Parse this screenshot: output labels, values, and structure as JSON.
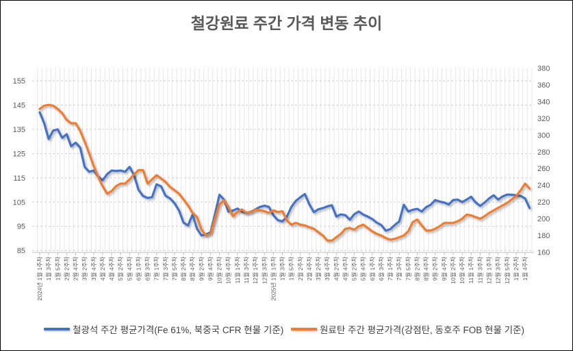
{
  "window": {
    "background": "#ffffff",
    "border_color": "#000000"
  },
  "chart": {
    "title": "철강원료 주간 가격 변동 추이",
    "title_color": "#595959"
  },
  "legend": {
    "items": [
      {
        "label": "철광석 주간 평균가격(Fe 61%, 북중국 CFR 현물 기준)",
        "color": "#4472C4"
      },
      {
        "label": "원료탄 주간 평균가격(강점탄, 동호주 FOB 현물 기준)",
        "color": "#ED7D31"
      }
    ]
  },
  "chart_data": {
    "type": "line",
    "title": "철강원료 주간 가격 변동 추이",
    "x_ticks_every": 2,
    "n_points": 110,
    "x_tick_labels": [
      "2024년 1월 1주차",
      "1월 3주차",
      "1월 5주차",
      "2월 2주차",
      "2월 4주차",
      "3월 2주차",
      "3월 4주차",
      "4월 2주차",
      "4월 4주차",
      "5월 2주차",
      "5월 4주차",
      "6월 1주차",
      "6월 3주차",
      "7월 1주차",
      "7월 3주차",
      "7월 5주차",
      "8월 2주차",
      "8월 4주차",
      "9월 2주차",
      "9월 4주차",
      "10월 2주차",
      "10월 4주차",
      "11월 1주차",
      "11월 3주차",
      "12월 1주차",
      "12월 3주차",
      "2025년 1월 1주차",
      "1월 3주차",
      "1월 5주차",
      "2월 2주차",
      "2월 4주차",
      "3월 2주차",
      "3월 4주차",
      "4월 2주차",
      "4월 4주차",
      "5월 2주차",
      "5월 4주차",
      "6월 1주차",
      "6월 3주차",
      "7월 1주차",
      "7월 3주차",
      "7월 5주차",
      "8월 2주차",
      "8월 4주차",
      "9월 2주차",
      "9월 4주차",
      "10월 2주차",
      "10월 4주차",
      "11월 1주차",
      "11월 3주차",
      "12월 1주차",
      "12월 3주차",
      "12월 5주차",
      "1월 2주차",
      "1월 4주차"
    ],
    "left_axis": {
      "min": 85,
      "max": 155,
      "step": 10,
      "ticks": [
        85,
        95,
        105,
        115,
        125,
        135,
        145,
        155
      ],
      "grid": "dashed"
    },
    "right_axis": {
      "min": 160,
      "max": 380,
      "step": 20,
      "ticks": [
        160,
        180,
        200,
        220,
        240,
        260,
        280,
        300,
        320,
        340,
        360,
        380
      ]
    },
    "legend_position": "bottom",
    "series": [
      {
        "name": "철광석 주간 평균가격(Fe 61%, 북중국 CFR 현물 기준)",
        "axis": "left",
        "color": "#4472C4",
        "values": [
          142,
          137.5,
          131,
          134.5,
          135,
          131.5,
          133,
          128,
          129.5,
          127.5,
          119.5,
          117.5,
          118,
          115.5,
          114,
          116.5,
          118,
          117.8,
          118,
          117.5,
          119.5,
          116,
          110,
          107.5,
          106.7,
          107,
          112.3,
          111.5,
          107.6,
          106.5,
          104.5,
          101.5,
          96.5,
          95.3,
          99.8,
          94,
          91.2,
          91.6,
          92.5,
          100,
          108,
          106,
          101,
          101.5,
          102.3,
          101,
          100.5,
          101,
          102,
          103,
          103.5,
          103,
          99.5,
          97.5,
          97,
          99,
          103,
          105.5,
          107,
          108.3,
          104,
          100.8,
          102,
          102.5,
          103.2,
          103.7,
          99,
          99.9,
          99.6,
          97.7,
          100,
          101.1,
          99.8,
          99,
          98,
          96.5,
          95.5,
          93.2,
          93.8,
          95.5,
          97,
          103.9,
          101.1,
          101.8,
          102.2,
          101.1,
          102.9,
          103.9,
          105.8,
          105.2,
          104.8,
          104,
          105.8,
          106,
          105,
          106,
          107.2,
          104.8,
          103.4,
          104.8,
          106.5,
          107.8,
          106,
          107.3,
          108.1,
          108,
          107.8,
          107.5,
          106.5,
          102.5
        ]
      },
      {
        "name": "원료탄 주간 평균가격(강점탄, 동호주 FOB 현물 기준)",
        "axis": "right",
        "color": "#ED7D31",
        "values": [
          331,
          335,
          336,
          335,
          331,
          326,
          318,
          314,
          314,
          305,
          292,
          278,
          263,
          250,
          239,
          230,
          233,
          239,
          242,
          242,
          247,
          253,
          258,
          258,
          242,
          247,
          252,
          248,
          244,
          238,
          234,
          230,
          223,
          216,
          207,
          202,
          187,
          180,
          182,
          200,
          217,
          222,
          214,
          203,
          208,
          211,
          207,
          208,
          211,
          210,
          209,
          207,
          210,
          208,
          209,
          198,
          193,
          195,
          193,
          192,
          190,
          188,
          184,
          180,
          174,
          174,
          178,
          182,
          188,
          189,
          187,
          191,
          193,
          189,
          185,
          182,
          180,
          177,
          175,
          176,
          178,
          180,
          185,
          196,
          199,
          192,
          186,
          186,
          188,
          191,
          195,
          195,
          195,
          197,
          200,
          205,
          204,
          202,
          200,
          203,
          207,
          210,
          213,
          216,
          219,
          223,
          227,
          234,
          242,
          236
        ]
      }
    ]
  }
}
